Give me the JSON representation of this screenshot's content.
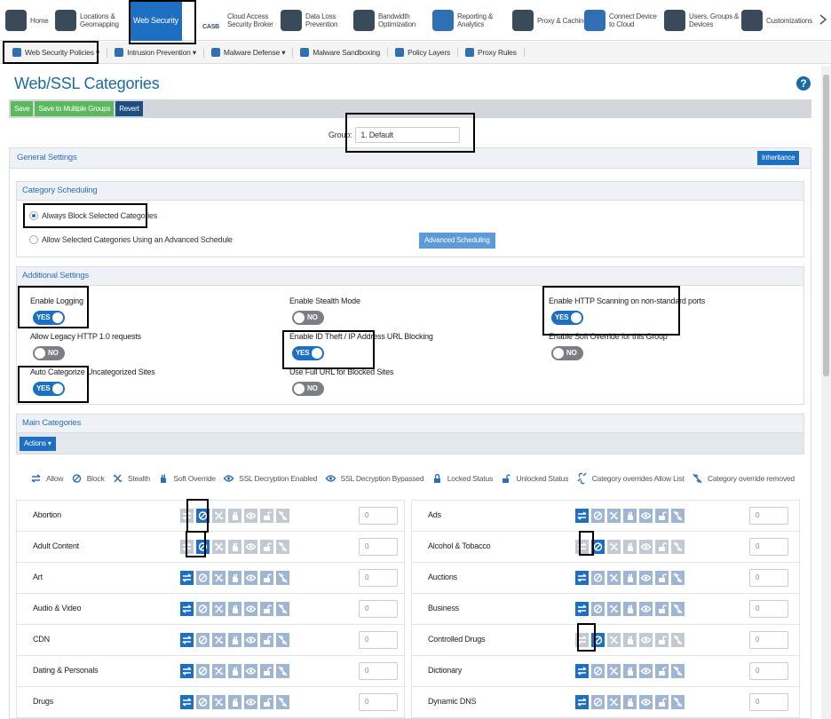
{
  "nav": [
    {
      "label": "Home"
    },
    {
      "label": "Locations & Geomapping"
    },
    {
      "label": "Web Security",
      "active": true
    },
    {
      "label": "Cloud Access Security Broker",
      "badge": "CASB"
    },
    {
      "label": "Data Loss Prevention"
    },
    {
      "label": "Bandwidth Optimization"
    },
    {
      "label": "Reporting & Analytics"
    },
    {
      "label": "Proxy & Caching"
    },
    {
      "label": "Connect Device to Cloud"
    },
    {
      "label": "Users, Groups & Devices"
    },
    {
      "label": "Customizations"
    }
  ],
  "subnav": [
    "Web Security Policies ▾",
    "Intrusion Prevention ▾",
    "Malware Defense ▾",
    "Malware Sandboxing",
    "Policy Layers",
    "Proxy Rules"
  ],
  "page_title": "Web/SSL Categories",
  "toolbar": [
    "Save",
    "Save to Multiple Groups",
    "Revert"
  ],
  "group": {
    "label": "Group:",
    "value": "1. Default"
  },
  "general_settings": {
    "title": "General Settings",
    "button": "Inheritance"
  },
  "category_scheduling": {
    "title": "Category Scheduling",
    "options": [
      {
        "label": "Always Block Selected Categories",
        "selected": true
      },
      {
        "label": "Allow Selected Categories Using an Advanced Schedule",
        "selected": false
      }
    ],
    "button": "Advanced Scheduling"
  },
  "additional_settings": {
    "title": "Additional Settings",
    "toggles": [
      {
        "label": "Enable Logging",
        "state": "YES"
      },
      {
        "label": "Enable Stealth Mode",
        "state": "NO"
      },
      {
        "label": "Enable HTTP Scanning on non-standard ports",
        "state": "YES"
      },
      {
        "label": "Allow Legacy HTTP 1.0 requests",
        "state": "NO"
      },
      {
        "label": "Enable ID Theft / IP Address URL Blocking",
        "state": "YES"
      },
      {
        "label": "Enable Soft Override for this Group",
        "state": "NO"
      },
      {
        "label": "Auto Categorize Uncategorized Sites",
        "state": "YES"
      },
      {
        "label": "Use Full URL for Blocked Sites",
        "state": "NO"
      }
    ]
  },
  "main_categories": {
    "title": "Main Categories",
    "actions_button": "Actions ▾",
    "legend": [
      "Allow",
      "Block",
      "Stealth",
      "Soft Override",
      "SSL Decryption Enabled",
      "SSL Decryption Bypassed",
      "Locked Status",
      "Unlocked Status",
      "Category overrides Allow List",
      "Category override removed"
    ],
    "left": [
      {
        "name": "Abortion",
        "action": "block",
        "value": 0
      },
      {
        "name": "Adult Content",
        "action": "block",
        "value": 0
      },
      {
        "name": "Art",
        "action": "allow",
        "value": 0
      },
      {
        "name": "Audio & Video",
        "action": "allow",
        "value": 0
      },
      {
        "name": "CDN",
        "action": "allow",
        "value": 0
      },
      {
        "name": "Dating & Personals",
        "action": "allow",
        "value": 0
      },
      {
        "name": "Drugs",
        "action": "allow",
        "value": 0
      }
    ],
    "right": [
      {
        "name": "Ads",
        "action": "allow",
        "value": 0
      },
      {
        "name": "Alcohol & Tobacco",
        "action": "block",
        "value": 0
      },
      {
        "name": "Auctions",
        "action": "allow",
        "value": 0
      },
      {
        "name": "Business",
        "action": "allow",
        "value": 0
      },
      {
        "name": "Controlled Drugs",
        "action": "block",
        "value": 0
      },
      {
        "name": "Dictionary",
        "action": "allow",
        "value": 0
      },
      {
        "name": "Dynamic DNS",
        "action": "allow",
        "value": 0
      }
    ]
  }
}
